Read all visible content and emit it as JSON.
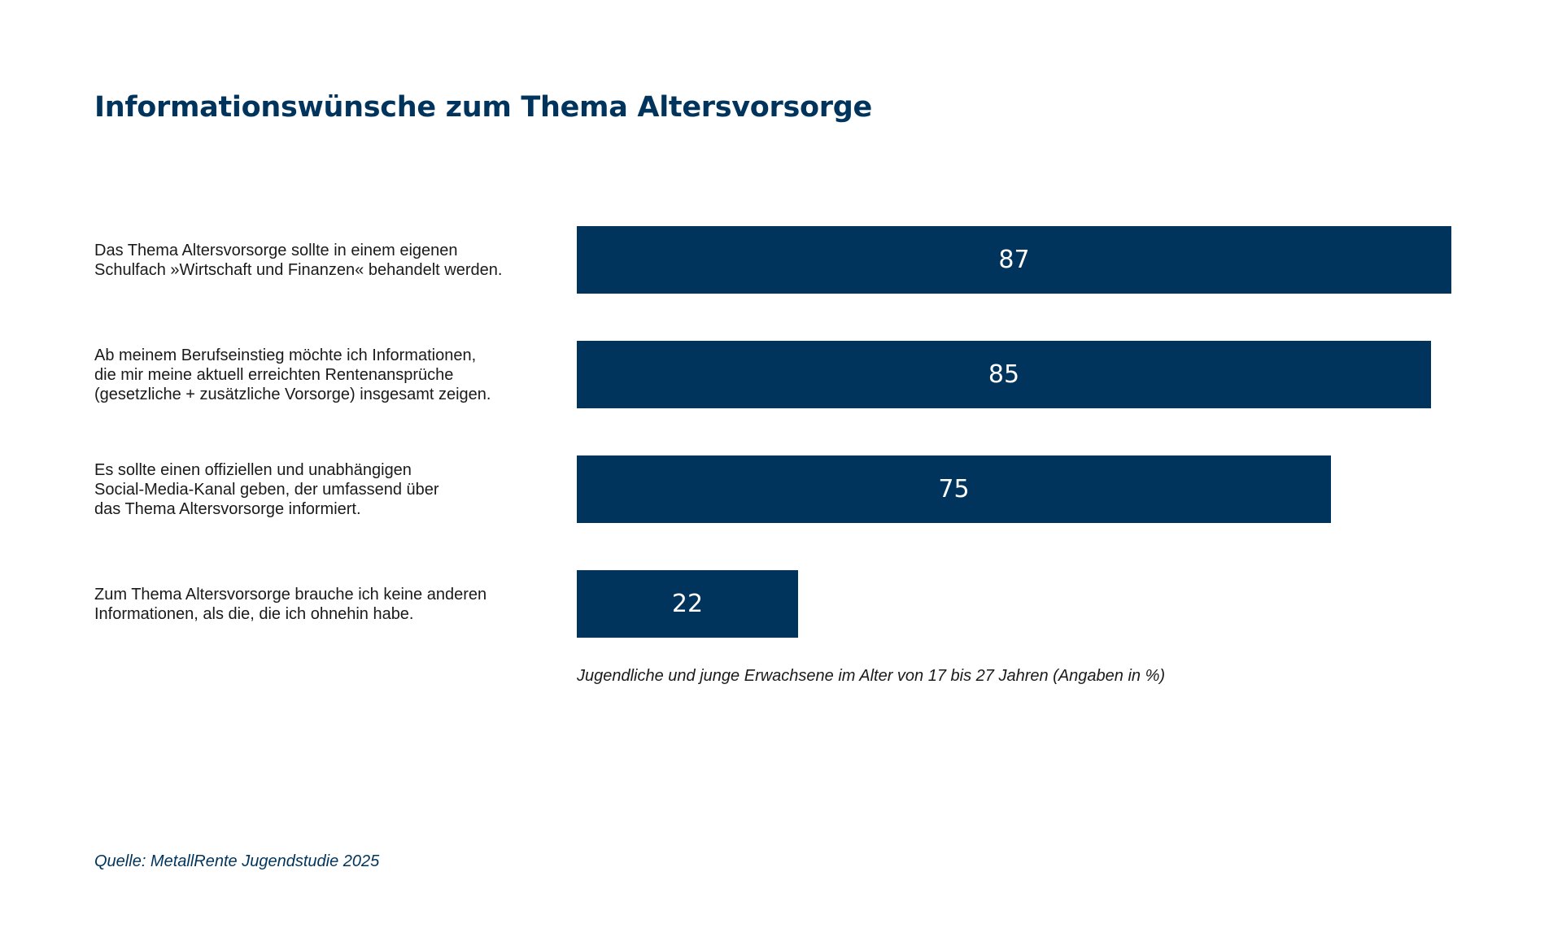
{
  "colors": {
    "bar": "#00345c",
    "title": "#00345c",
    "source": "#00345c",
    "text": "#1a1a1a",
    "value_text": "#ffffff"
  },
  "chart_data": {
    "type": "bar",
    "orientation": "horizontal",
    "title": "Informationswünsche zum Thema Altersvorsorge",
    "categories": [
      "Das Thema Altersvorsorge sollte in einem eigenen\nSchulfach »Wirtschaft und Finanzen« behandelt werden.",
      "Ab meinem Berufseinstieg möchte ich Informationen,\ndie mir meine aktuell erreichten Rentenansprüche\n(gesetzliche + zusätzliche Vorsorge) insgesamt zeigen.",
      "Es sollte einen offiziellen und unabhängigen\nSocial-Media-Kanal geben, der umfassend über\ndas Thema Altersvorsorge informiert.",
      "Zum Thema Altersvorsorge brauche ich keine anderen\nInformationen, als die, die ich ohnehin habe."
    ],
    "values": [
      87,
      85,
      75,
      22
    ],
    "xlim": [
      0,
      87
    ],
    "note": "Jugendliche und junge Erwachsene im Alter von 17 bis 27 Jahren (Angaben in %)",
    "data_labels": "inside-center",
    "grid": false,
    "axes_visible": false
  },
  "source": "Quelle: MetallRente Jugendstudie 2025"
}
